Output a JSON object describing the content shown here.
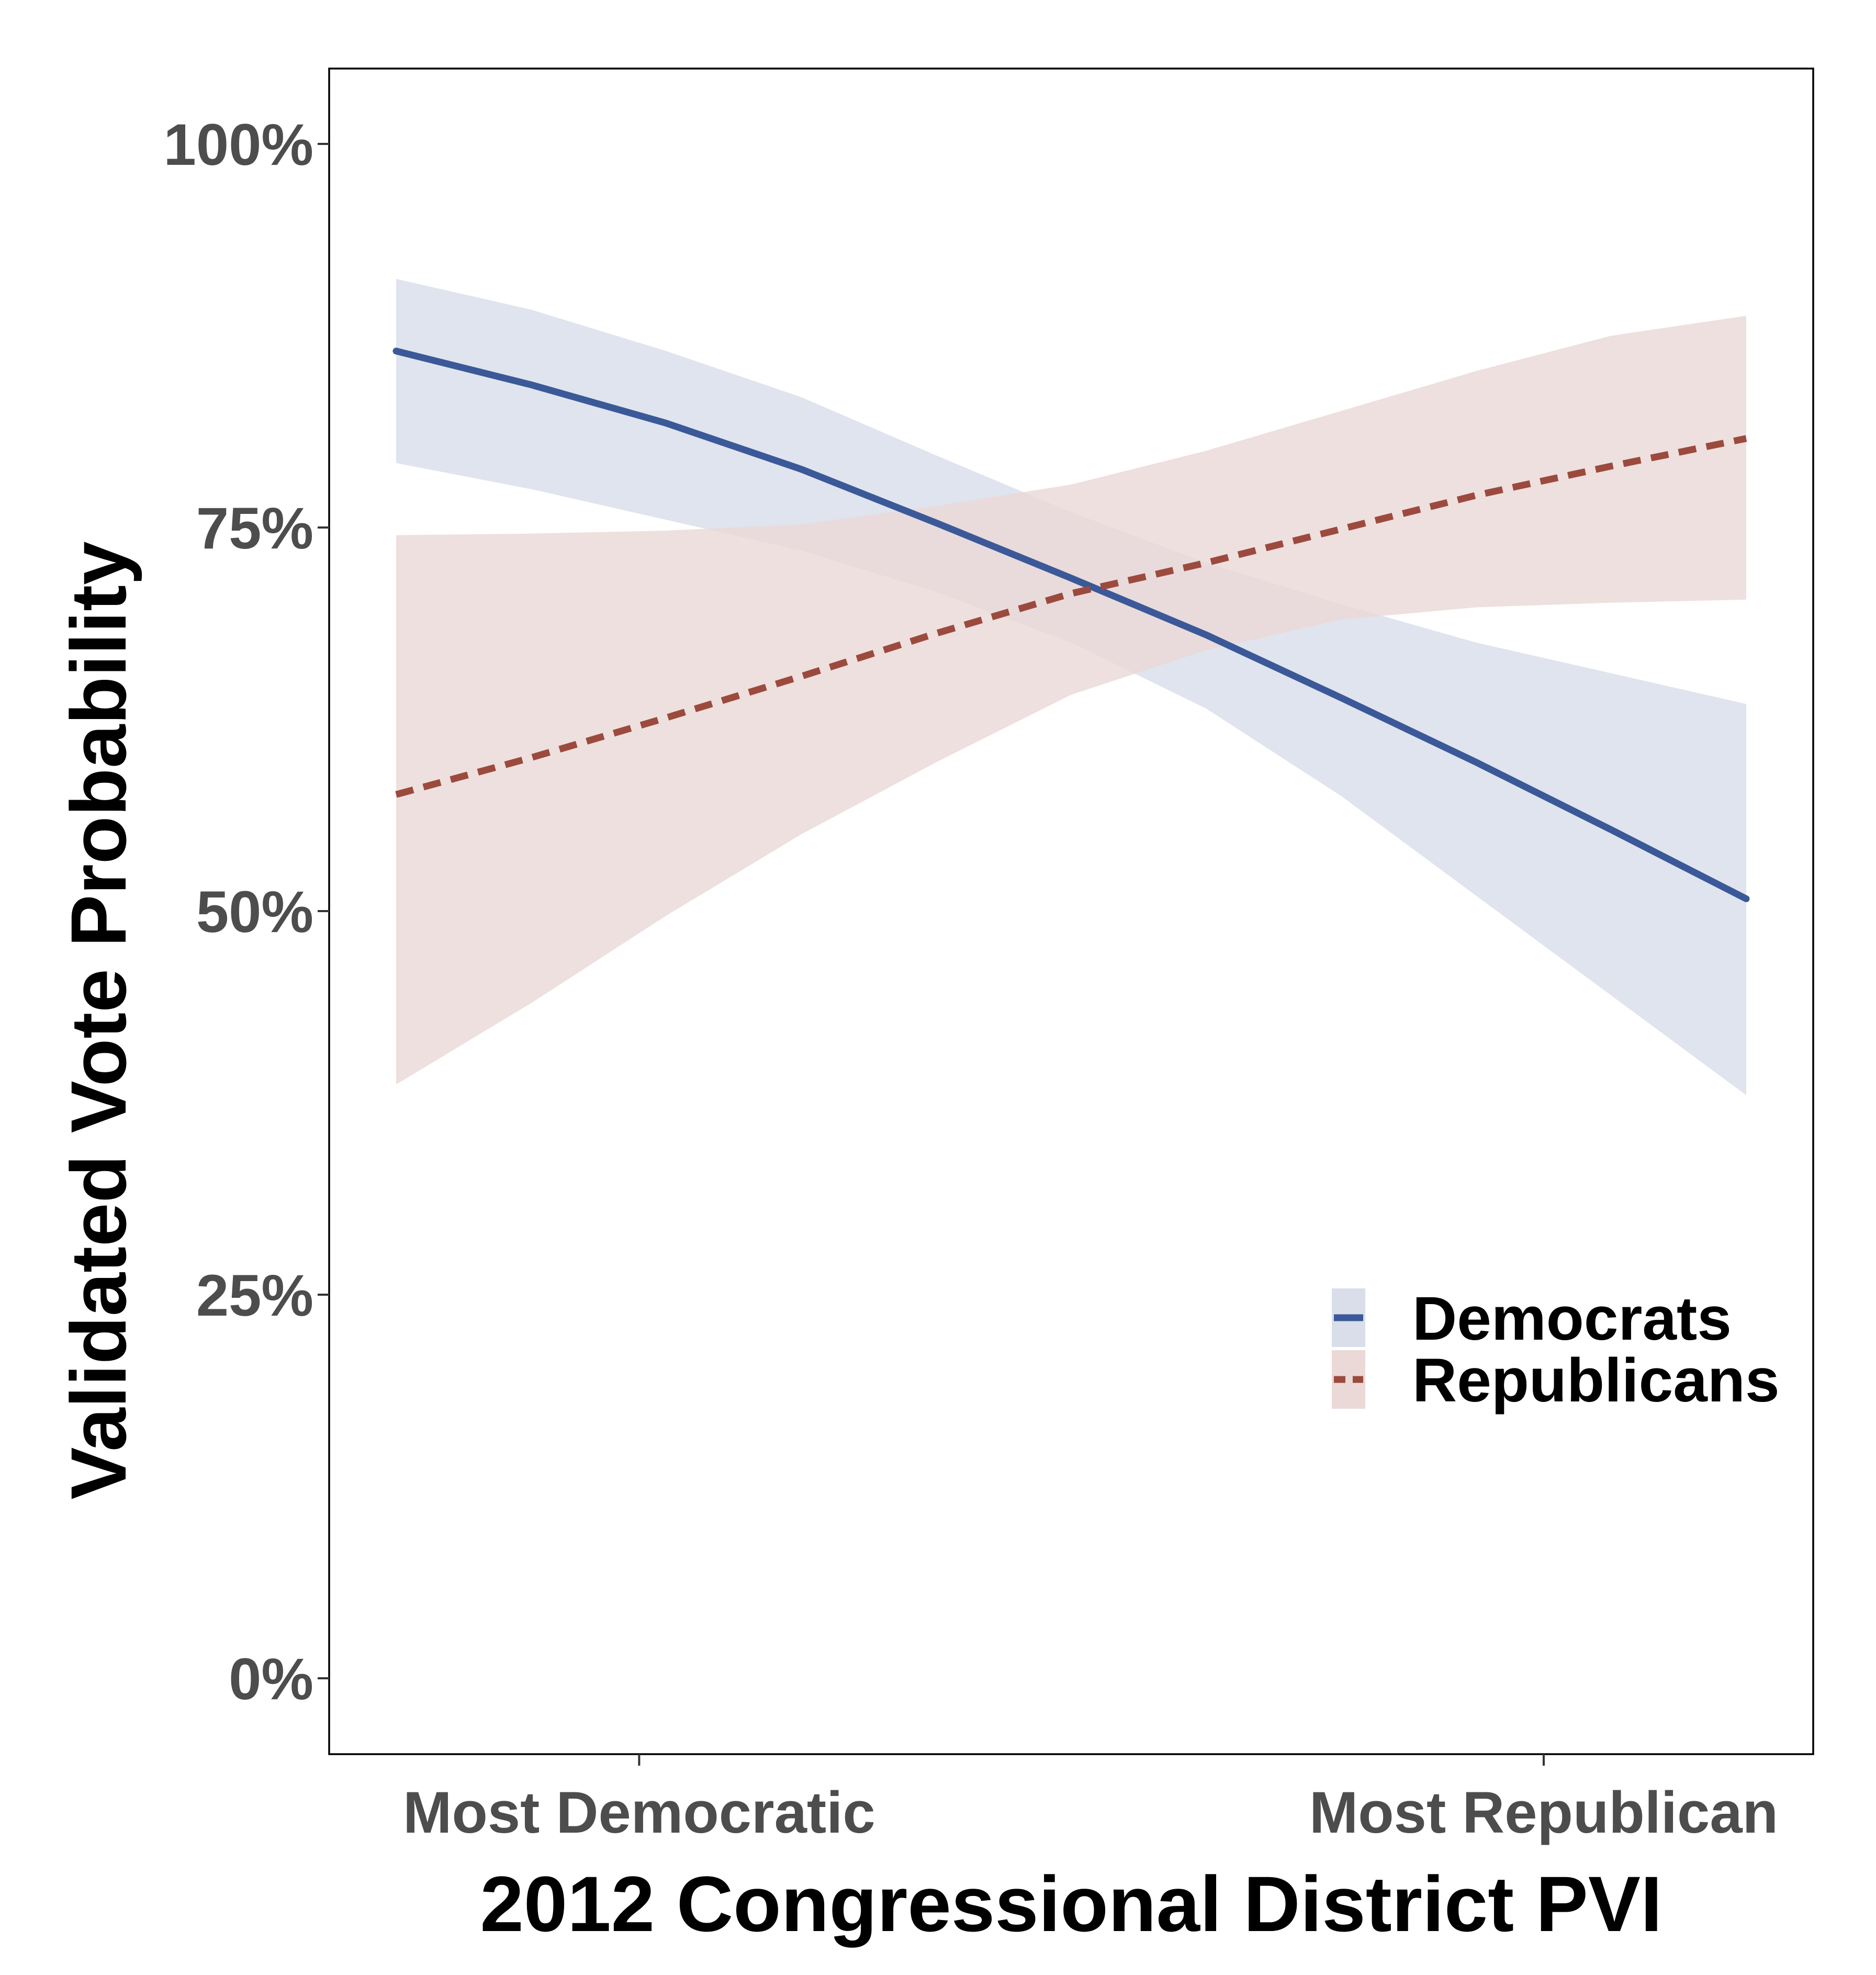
{
  "chart_data": {
    "type": "line",
    "title": "",
    "xlabel": "2012 Congressional District PVI",
    "ylabel": "Validated Vote Probability",
    "x_tick_labels": [
      "Most Democratic",
      "Most Republican"
    ],
    "x_tick_positions": [
      0.18,
      0.85
    ],
    "xlim": [
      0,
      1
    ],
    "ylim": [
      0,
      1
    ],
    "y_ticks": [
      0,
      0.25,
      0.5,
      0.75,
      1.0
    ],
    "y_tick_labels": [
      "0%",
      "25%",
      "50%",
      "75%",
      "100%"
    ],
    "grid": false,
    "legend_position": "right, lower-middle",
    "x": [
      0.0,
      0.1,
      0.2,
      0.3,
      0.4,
      0.5,
      0.6,
      0.7,
      0.8,
      0.9,
      1.0
    ],
    "series": [
      {
        "name": "Democrats",
        "line_style": "solid",
        "color": "#3b5998",
        "band_color": "#d9deea",
        "values": [
          0.865,
          0.843,
          0.818,
          0.788,
          0.753,
          0.717,
          0.68,
          0.639,
          0.597,
          0.553,
          0.508
        ],
        "lower": [
          0.792,
          0.775,
          0.755,
          0.735,
          0.708,
          0.675,
          0.632,
          0.575,
          0.51,
          0.445,
          0.38
        ],
        "upper": [
          0.912,
          0.892,
          0.865,
          0.835,
          0.797,
          0.76,
          0.727,
          0.7,
          0.675,
          0.655,
          0.635
        ]
      },
      {
        "name": "Republicans",
        "line_style": "dashed",
        "color": "#9c4a3e",
        "band_color": "#ead9d7",
        "values": [
          0.576,
          0.6,
          0.626,
          0.653,
          0.681,
          0.707,
          0.727,
          0.749,
          0.771,
          0.79,
          0.808
        ],
        "lower": [
          0.387,
          0.44,
          0.497,
          0.55,
          0.597,
          0.641,
          0.67,
          0.69,
          0.698,
          0.701,
          0.703
        ],
        "upper": [
          0.745,
          0.746,
          0.748,
          0.752,
          0.764,
          0.778,
          0.8,
          0.826,
          0.852,
          0.875,
          0.888
        ]
      }
    ]
  },
  "colors": {
    "democrats_line": "#3b5998",
    "democrats_band": "#d9deea",
    "republicans_line": "#9c4a3e",
    "republicans_band": "#ead9d7",
    "panel_border": "#000000",
    "tick_label": "#4d4d4d"
  }
}
